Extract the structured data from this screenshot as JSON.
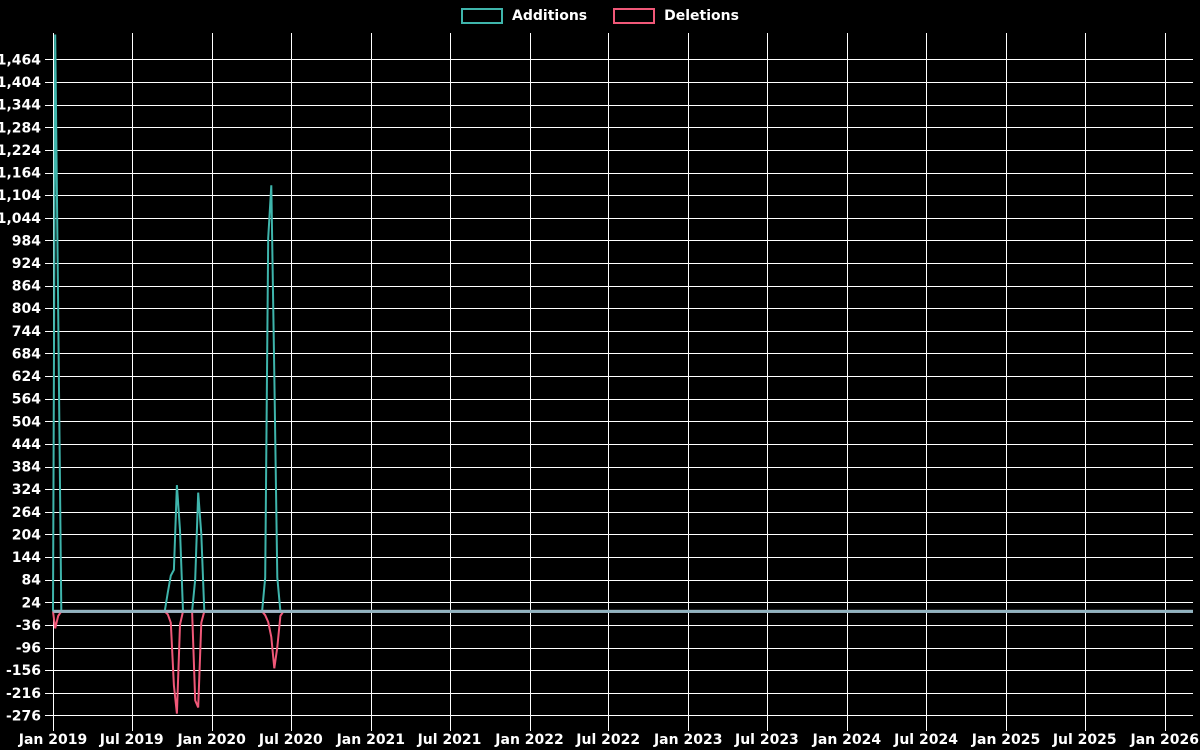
{
  "legend": {
    "items": [
      {
        "label": "Additions",
        "color": "#3fb5ac"
      },
      {
        "label": "Deletions",
        "color": "#f05878"
      }
    ]
  },
  "chart_data": {
    "type": "line",
    "title": "",
    "background_color": "#000000",
    "grid": true,
    "grid_color": "#ffffff",
    "text_color": "#ffffff",
    "zero_line_color": "#9fb4c4",
    "x_axis": {
      "ticks": [
        {
          "label": "Jan 2019",
          "date": "2019-01-01"
        },
        {
          "label": "Jul 2019",
          "date": "2019-07-01"
        },
        {
          "label": "Jan 2020",
          "date": "2020-01-01"
        },
        {
          "label": "Jul 2020",
          "date": "2020-07-01"
        },
        {
          "label": "Jan 2021",
          "date": "2021-01-01"
        },
        {
          "label": "Jul 2021",
          "date": "2021-07-01"
        },
        {
          "label": "Jan 2022",
          "date": "2022-01-01"
        },
        {
          "label": "Jul 2022",
          "date": "2022-07-01"
        },
        {
          "label": "Jan 2023",
          "date": "2023-01-01"
        },
        {
          "label": "Jul 2023",
          "date": "2023-07-01"
        },
        {
          "label": "Jan 2024",
          "date": "2024-01-01"
        },
        {
          "label": "Jul 2024",
          "date": "2024-07-01"
        },
        {
          "label": "Jan 2025",
          "date": "2025-01-01"
        },
        {
          "label": "Jul 2025",
          "date": "2025-07-01"
        },
        {
          "label": "Jan 2026",
          "date": "2026-01-01"
        }
      ],
      "range_dates": [
        "2019-01-01",
        "2026-03-07"
      ]
    },
    "y_axis": {
      "ticks": [
        {
          "label": "-276",
          "value": -276
        },
        {
          "label": "-216",
          "value": -216
        },
        {
          "label": "-156",
          "value": -156
        },
        {
          "label": "-96",
          "value": -96
        },
        {
          "label": "-36",
          "value": -36
        },
        {
          "label": "24",
          "value": 24
        },
        {
          "label": "84",
          "value": 84
        },
        {
          "label": "144",
          "value": 144
        },
        {
          "label": "204",
          "value": 204
        },
        {
          "label": "264",
          "value": 264
        },
        {
          "label": "324",
          "value": 324
        },
        {
          "label": "384",
          "value": 384
        },
        {
          "label": "444",
          "value": 444
        },
        {
          "label": "504",
          "value": 504
        },
        {
          "label": "564",
          "value": 564
        },
        {
          "label": "624",
          "value": 624
        },
        {
          "label": "684",
          "value": 684
        },
        {
          "label": "744",
          "value": 744
        },
        {
          "label": "804",
          "value": 804
        },
        {
          "label": "864",
          "value": 864
        },
        {
          "label": "924",
          "value": 924
        },
        {
          "label": "984",
          "value": 984
        },
        {
          "label": "1,044",
          "value": 1044
        },
        {
          "label": "1,104",
          "value": 1104
        },
        {
          "label": "1,164",
          "value": 1164
        },
        {
          "label": "1,224",
          "value": 1224
        },
        {
          "label": "1,284",
          "value": 1284
        },
        {
          "label": "1,344",
          "value": 1344
        },
        {
          "label": "1,404",
          "value": 1404
        },
        {
          "label": "1,464",
          "value": 1464
        }
      ],
      "range": [
        -296,
        1534
      ]
    },
    "series": [
      {
        "name": "Additions",
        "color": "#3fb5ac",
        "default_value": 0,
        "weekly_points_nonzero": [
          [
            "2019-01-06",
            1530
          ],
          [
            "2019-01-13",
            795
          ],
          [
            "2019-09-22",
            50
          ],
          [
            "2019-09-29",
            95
          ],
          [
            "2019-10-06",
            110
          ],
          [
            "2019-10-13",
            335
          ],
          [
            "2019-10-20",
            215
          ],
          [
            "2019-11-24",
            85
          ],
          [
            "2019-12-01",
            315
          ],
          [
            "2019-12-08",
            205
          ],
          [
            "2020-05-03",
            90
          ],
          [
            "2020-05-10",
            990
          ],
          [
            "2020-05-17",
            1130
          ],
          [
            "2020-05-24",
            630
          ],
          [
            "2020-05-31",
            90
          ]
        ]
      },
      {
        "name": "Deletions",
        "color": "#f05878",
        "default_value": 0,
        "weekly_points_nonzero": [
          [
            "2019-01-06",
            -45
          ],
          [
            "2019-01-13",
            -12
          ],
          [
            "2019-09-22",
            -8
          ],
          [
            "2019-09-29",
            -30
          ],
          [
            "2019-10-06",
            -196
          ],
          [
            "2019-10-13",
            -271
          ],
          [
            "2019-10-20",
            -35
          ],
          [
            "2019-11-24",
            -236
          ],
          [
            "2019-12-01",
            -255
          ],
          [
            "2019-12-08",
            -30
          ],
          [
            "2020-05-03",
            -10
          ],
          [
            "2020-05-10",
            -28
          ],
          [
            "2020-05-17",
            -68
          ],
          [
            "2020-05-24",
            -151
          ],
          [
            "2020-05-31",
            -95
          ],
          [
            "2020-06-07",
            -12
          ]
        ]
      }
    ]
  }
}
